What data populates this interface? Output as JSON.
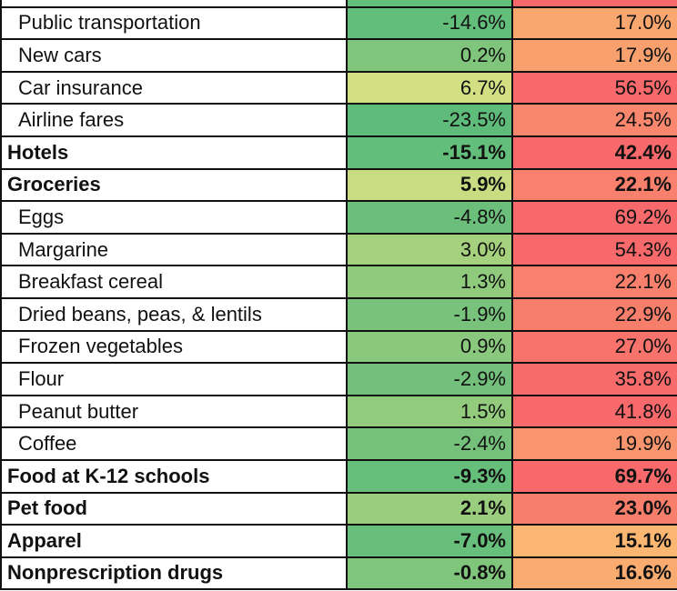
{
  "chart_data": {
    "type": "table",
    "columns": [
      "",
      "",
      ""
    ],
    "rows": [
      {
        "label": "",
        "v1": "",
        "v2": "",
        "bold": true,
        "c1": "#63be7b",
        "c2": "#f8696b"
      },
      {
        "label": "Public transportation",
        "v1": "-14.6%",
        "v2": "17.0%",
        "bold": false,
        "c1": "#63be7b",
        "c2": "#f9a66f"
      },
      {
        "label": "New cars",
        "v1": "0.2%",
        "v2": "17.9%",
        "bold": false,
        "c1": "#80c57c",
        "c2": "#f8a06e"
      },
      {
        "label": "Car insurance",
        "v1": "6.7%",
        "v2": "56.5%",
        "bold": false,
        "c1": "#d2df82",
        "c2": "#f8696b"
      },
      {
        "label": "Airline fares",
        "v1": "-23.5%",
        "v2": "24.5%",
        "bold": false,
        "c1": "#5fbb7a",
        "c2": "#f9876d"
      },
      {
        "label": "Hotels",
        "v1": "-15.1%",
        "v2": "42.4%",
        "bold": true,
        "c1": "#63be7b",
        "c2": "#f8696b"
      },
      {
        "label": "Groceries",
        "v1": "5.9%",
        "v2": "22.1%",
        "bold": true,
        "c1": "#c9dc81",
        "c2": "#f8806c"
      },
      {
        "label": "Eggs",
        "v1": "-4.8%",
        "v2": "69.2%",
        "bold": false,
        "c1": "#6bbf7b",
        "c2": "#f8696b"
      },
      {
        "label": "Margarine",
        "v1": "3.0%",
        "v2": "54.3%",
        "bold": false,
        "c1": "#a5d17e",
        "c2": "#f8696b"
      },
      {
        "label": "Breakfast cereal",
        "v1": "1.3%",
        "v2": "22.1%",
        "bold": false,
        "c1": "#8fca7d",
        "c2": "#f8806c"
      },
      {
        "label": "Dried beans, peas, & lentils",
        "v1": "-1.9%",
        "v2": "22.9%",
        "bold": false,
        "c1": "#78c27c",
        "c2": "#f87e6c"
      },
      {
        "label": "Frozen vegetables",
        "v1": "0.9%",
        "v2": "27.0%",
        "bold": false,
        "c1": "#8ac87d",
        "c2": "#f8736b"
      },
      {
        "label": "Flour",
        "v1": "-2.9%",
        "v2": "35.8%",
        "bold": false,
        "c1": "#72c07b",
        "c2": "#f86b6b"
      },
      {
        "label": "Peanut butter",
        "v1": "1.5%",
        "v2": "41.8%",
        "bold": false,
        "c1": "#93cb7d",
        "c2": "#f8696b"
      },
      {
        "label": "Coffee",
        "v1": "-2.4%",
        "v2": "19.9%",
        "bold": false,
        "c1": "#75c17c",
        "c2": "#f8946e"
      },
      {
        "label": "Food at K-12 schools",
        "v1": "-9.3%",
        "v2": "69.7%",
        "bold": true,
        "c1": "#66be7b",
        "c2": "#f8696b"
      },
      {
        "label": "Pet food",
        "v1": "2.1%",
        "v2": "23.0%",
        "bold": true,
        "c1": "#9ace7e",
        "c2": "#f87e6c"
      },
      {
        "label": "Apparel",
        "v1": "-7.0%",
        "v2": "15.1%",
        "bold": true,
        "c1": "#68be7b",
        "c2": "#fbb772"
      },
      {
        "label": "Nonprescription drugs",
        "v1": "-0.8%",
        "v2": "16.6%",
        "bold": true,
        "c1": "#80c57c",
        "c2": "#faac70"
      }
    ]
  }
}
